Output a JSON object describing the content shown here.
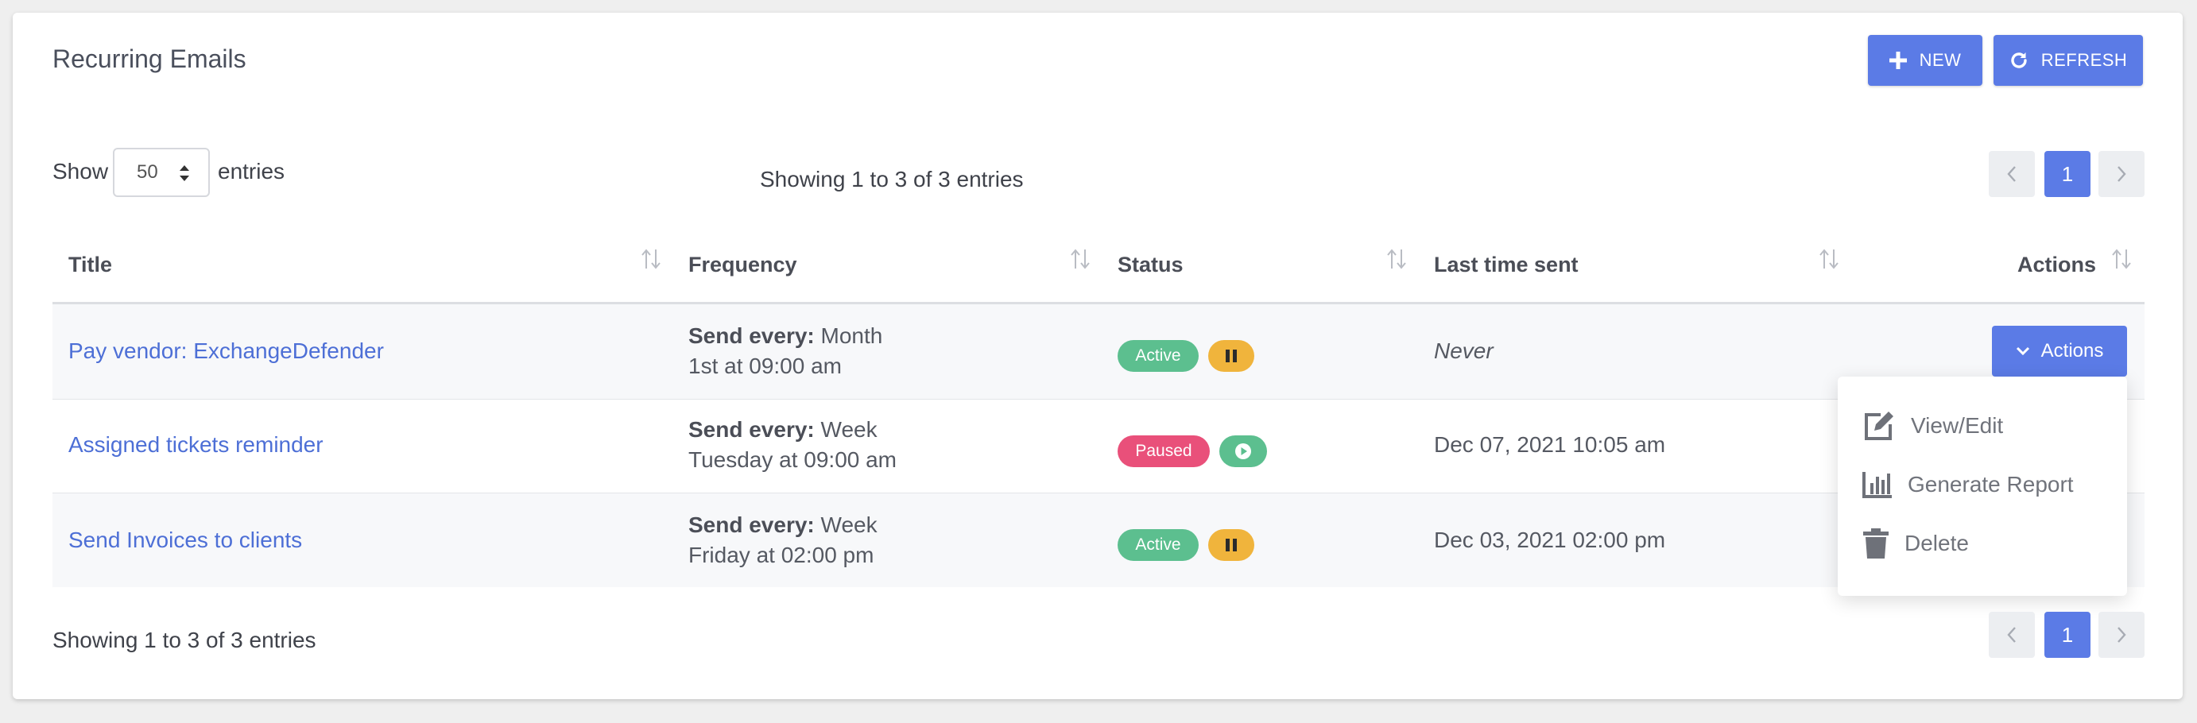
{
  "page": {
    "title": "Recurring Emails"
  },
  "toolbar": {
    "new_label": "NEW",
    "refresh_label": "REFRESH"
  },
  "length": {
    "show_label": "Show",
    "value": "50",
    "entries_label": "entries"
  },
  "info": {
    "top": "Showing 1 to 3 of 3 entries",
    "bottom": "Showing 1 to 3 of 3 entries"
  },
  "pagination": {
    "current": "1"
  },
  "table": {
    "columns": [
      "Title",
      "Frequency",
      "Status",
      "Last time sent",
      "Actions"
    ],
    "rows": [
      {
        "title": "Pay vendor: ExchangeDefender",
        "freq_label": "Send every:",
        "freq_unit": "Month",
        "freq_detail": "1st at 09:00 am",
        "status": "Active",
        "last_sent": "Never"
      },
      {
        "title": "Assigned tickets reminder",
        "freq_label": "Send every:",
        "freq_unit": "Week",
        "freq_detail": "Tuesday at 09:00 am",
        "status": "Paused",
        "last_sent": "Dec 07, 2021 10:05 am"
      },
      {
        "title": "Send Invoices to clients",
        "freq_label": "Send every:",
        "freq_unit": "Week",
        "freq_detail": "Friday at 02:00 pm",
        "status": "Active",
        "last_sent": "Dec 03, 2021 02:00 pm"
      }
    ]
  },
  "actions_menu": {
    "button_label": "Actions",
    "items": [
      "View/Edit",
      "Generate Report",
      "Delete"
    ]
  },
  "colors": {
    "primary": "#5b7be6",
    "link": "#4d6fd6",
    "active": "#5cbf8f",
    "paused": "#e9507a",
    "pause_icon": "#f0b43c"
  },
  "icons": {
    "new": "plus-icon",
    "refresh": "refresh-icon",
    "sort": "sort-icon",
    "actions": "chevron-down-icon",
    "view_edit": "edit-icon",
    "report": "bar-chart-icon",
    "delete": "trash-icon"
  }
}
